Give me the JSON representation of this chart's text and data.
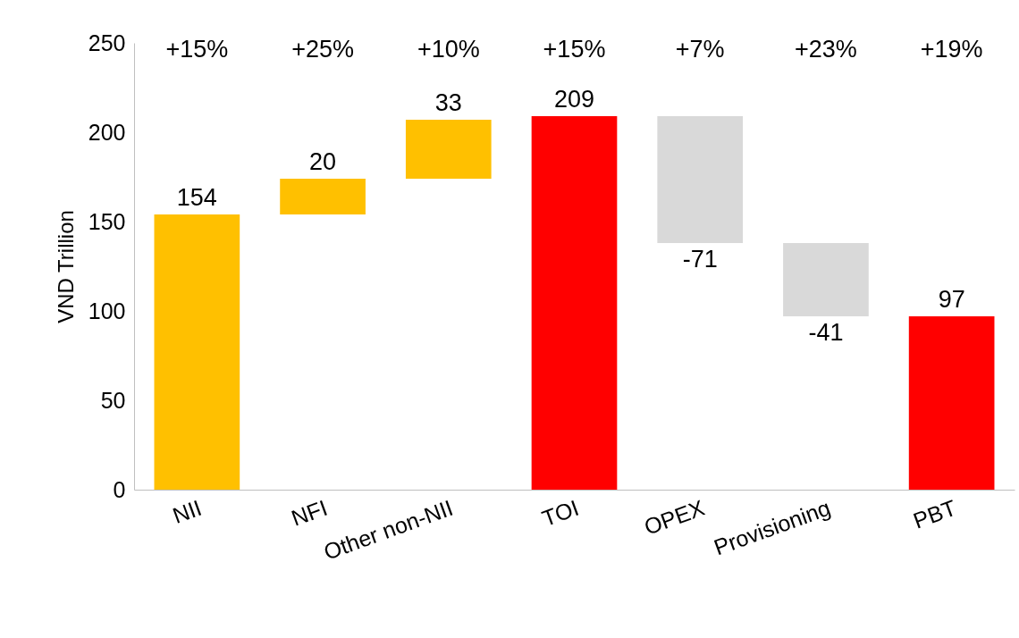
{
  "chart_data": {
    "type": "bar",
    "ylabel": "VND Trillion",
    "categories": [
      "NII",
      "NFI",
      "Other non-NII",
      "TOI",
      "OPEX",
      "Provisioning",
      "PBT"
    ],
    "values": [
      154,
      20,
      33,
      209,
      -71,
      -41,
      97
    ],
    "base": [
      0,
      154,
      174,
      0,
      209,
      138,
      0
    ],
    "colors": [
      "#ffc000",
      "#ffc000",
      "#ffc000",
      "#ff0000",
      "#d9d9d9",
      "#d9d9d9",
      "#ff0000"
    ],
    "ylim": [
      0,
      250
    ],
    "yticks": [
      0,
      50,
      100,
      150,
      200,
      250
    ],
    "grid": false,
    "data_labels": true,
    "annotations": [
      "+15%",
      "+25%",
      "+10%",
      "+15%",
      "+7%",
      "+23%",
      "+19%"
    ]
  }
}
